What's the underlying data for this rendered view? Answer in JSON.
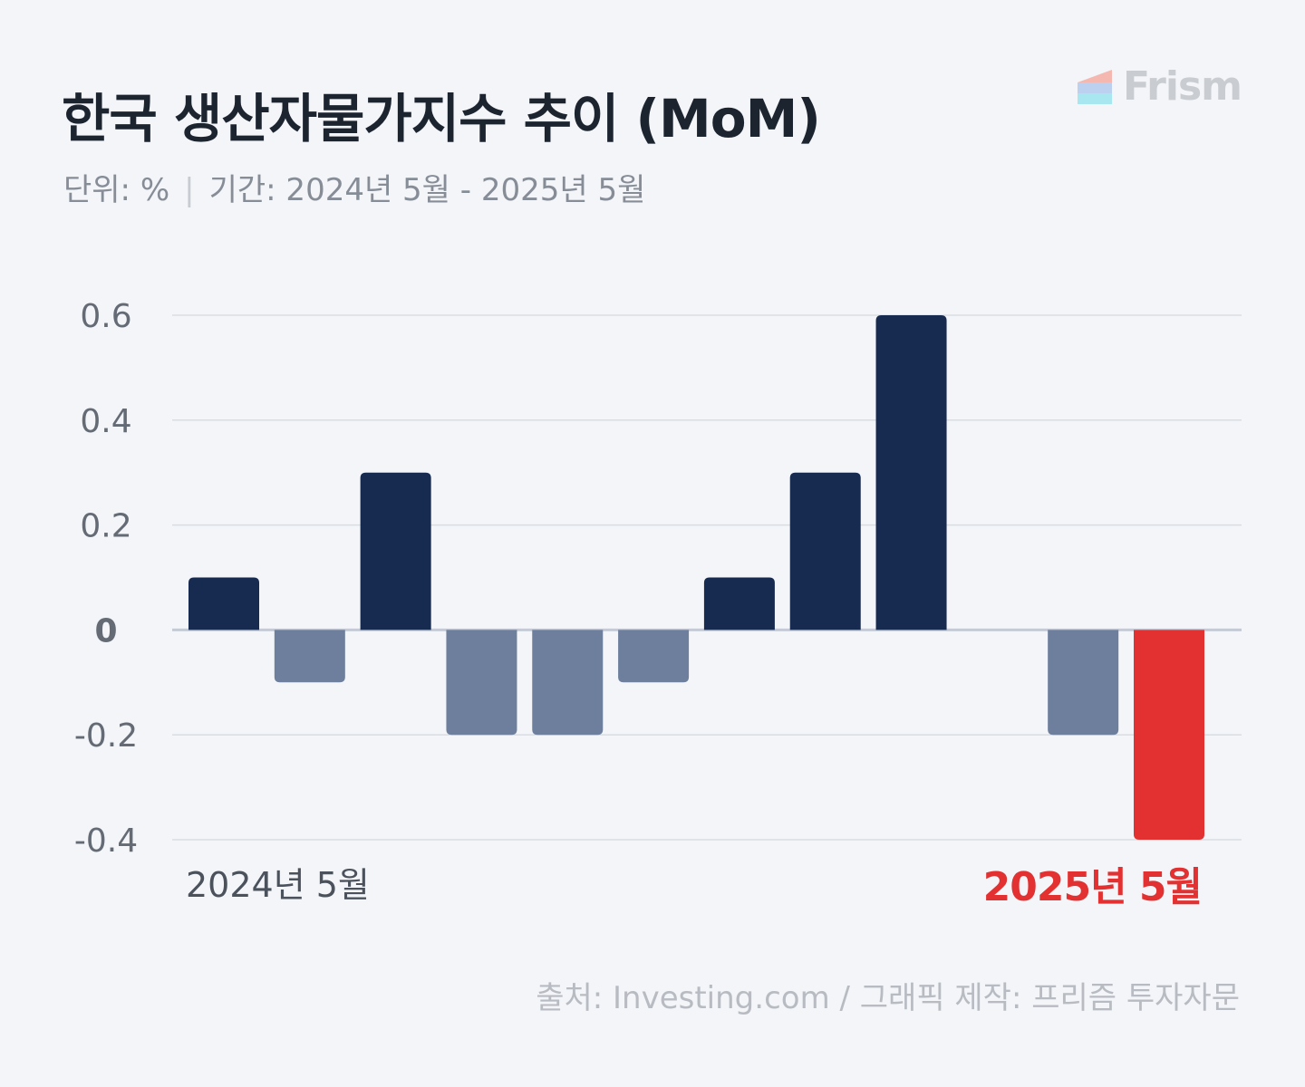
{
  "header": {
    "title": "한국 생산자물가지수 추이 (MoM)",
    "unit": "단위: %",
    "period": "기간: 2024년 5월 - 2025년 5월"
  },
  "brand": {
    "name": "Frism"
  },
  "footer": {
    "source": "출처: Investing.com / 그래픽 제작: 프리즘 투자자문"
  },
  "colors": {
    "positive": "#172a50",
    "negative": "#6d7f9d",
    "highlight": "#e33131",
    "grid": "#d9dde3",
    "zero_line": "#c5cad6",
    "tick": "#646b75",
    "start_label": "#4b525c"
  },
  "chart_data": {
    "type": "bar",
    "title": "한국 생산자물가지수 추이 (MoM)",
    "xlabel": "",
    "ylabel": "",
    "ylim": [
      -0.4,
      0.6
    ],
    "yticks": [
      0.6,
      0.4,
      0.2,
      0,
      -0.2,
      -0.4
    ],
    "ytick_labels": [
      "0.6",
      "0.4",
      "0.2",
      "0",
      "-0.2",
      "-0.4"
    ],
    "grid": true,
    "x_labels": {
      "start": "2024년 5월",
      "end": "2025년 5월"
    },
    "values": [
      0.1,
      -0.1,
      0.3,
      -0.2,
      -0.2,
      -0.1,
      0.1,
      0.3,
      0.6,
      0,
      -0.2,
      -0.4
    ],
    "highlight_index": 11
  }
}
